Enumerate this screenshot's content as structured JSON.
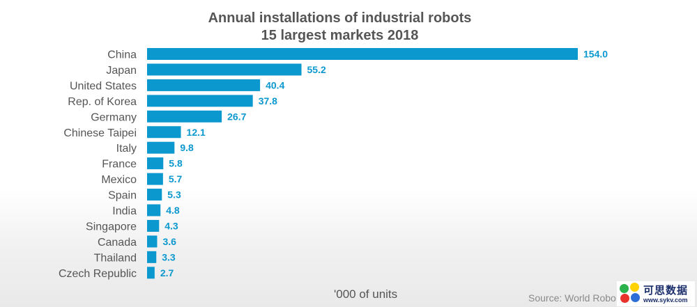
{
  "chart_data": {
    "type": "bar",
    "orientation": "horizontal",
    "title": "Annual installations of industrial robots",
    "subtitle": "15 largest markets 2018",
    "categories": [
      "China",
      "Japan",
      "United States",
      "Rep. of Korea",
      "Germany",
      "Chinese Taipei",
      "Italy",
      "France",
      "Mexico",
      "Spain",
      "India",
      "Singapore",
      "Canada",
      "Thailand",
      "Czech Republic"
    ],
    "values": [
      154.0,
      55.2,
      40.4,
      37.8,
      26.7,
      12.1,
      9.8,
      5.8,
      5.7,
      5.3,
      4.8,
      4.3,
      3.6,
      3.3,
      2.7
    ],
    "value_labels": [
      "154.0",
      "55.2",
      "40.4",
      "37.8",
      "26.7",
      "12.1",
      "9.8",
      "5.8",
      "5.7",
      "5.3",
      "4.8",
      "4.3",
      "3.6",
      "3.3",
      "2.7"
    ],
    "xlabel": "'000 of units",
    "xlim": [
      0,
      154
    ],
    "grid": false,
    "bar_color": "#0b98cf",
    "label_color": "#0b98cf",
    "text_color": "#555555"
  },
  "footer": {
    "units": "'000 of units",
    "source": "Source: World Robo"
  },
  "watermark": {
    "brand": "可思数据",
    "site": "www.sykv.com"
  }
}
